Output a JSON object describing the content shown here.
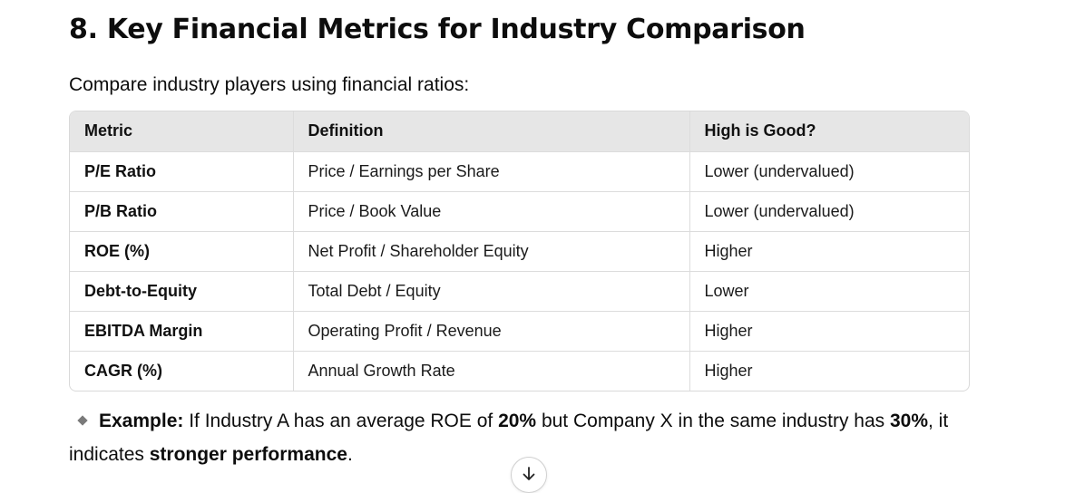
{
  "heading": "8. Key Financial Metrics for Industry Comparison",
  "intro": "Compare industry players using financial ratios:",
  "table": {
    "headers": [
      "Metric",
      "Definition",
      "High is Good?"
    ],
    "rows": [
      [
        "P/E Ratio",
        "Price / Earnings per Share",
        "Lower (undervalued)"
      ],
      [
        "P/B Ratio",
        "Price / Book Value",
        "Lower (undervalued)"
      ],
      [
        "ROE (%)",
        "Net Profit / Shareholder Equity",
        "Higher"
      ],
      [
        "Debt-to-Equity",
        "Total Debt / Equity",
        "Lower"
      ],
      [
        "EBITDA Margin",
        "Operating Profit / Revenue",
        "Higher"
      ],
      [
        "CAGR (%)",
        "Annual Growth Rate",
        "Higher"
      ]
    ]
  },
  "example": {
    "bullet_icon": "diamond-bullet-icon",
    "label": "Example:",
    "text1": " If Industry A has an average ROE of ",
    "value1": "20%",
    "text2": " but Company X in the same industry has ",
    "value2": "30%",
    "text3": ", it indicates ",
    "emphasis": "stronger performance",
    "text4": "."
  },
  "scroll_button": {
    "icon": "arrow-down-icon"
  }
}
